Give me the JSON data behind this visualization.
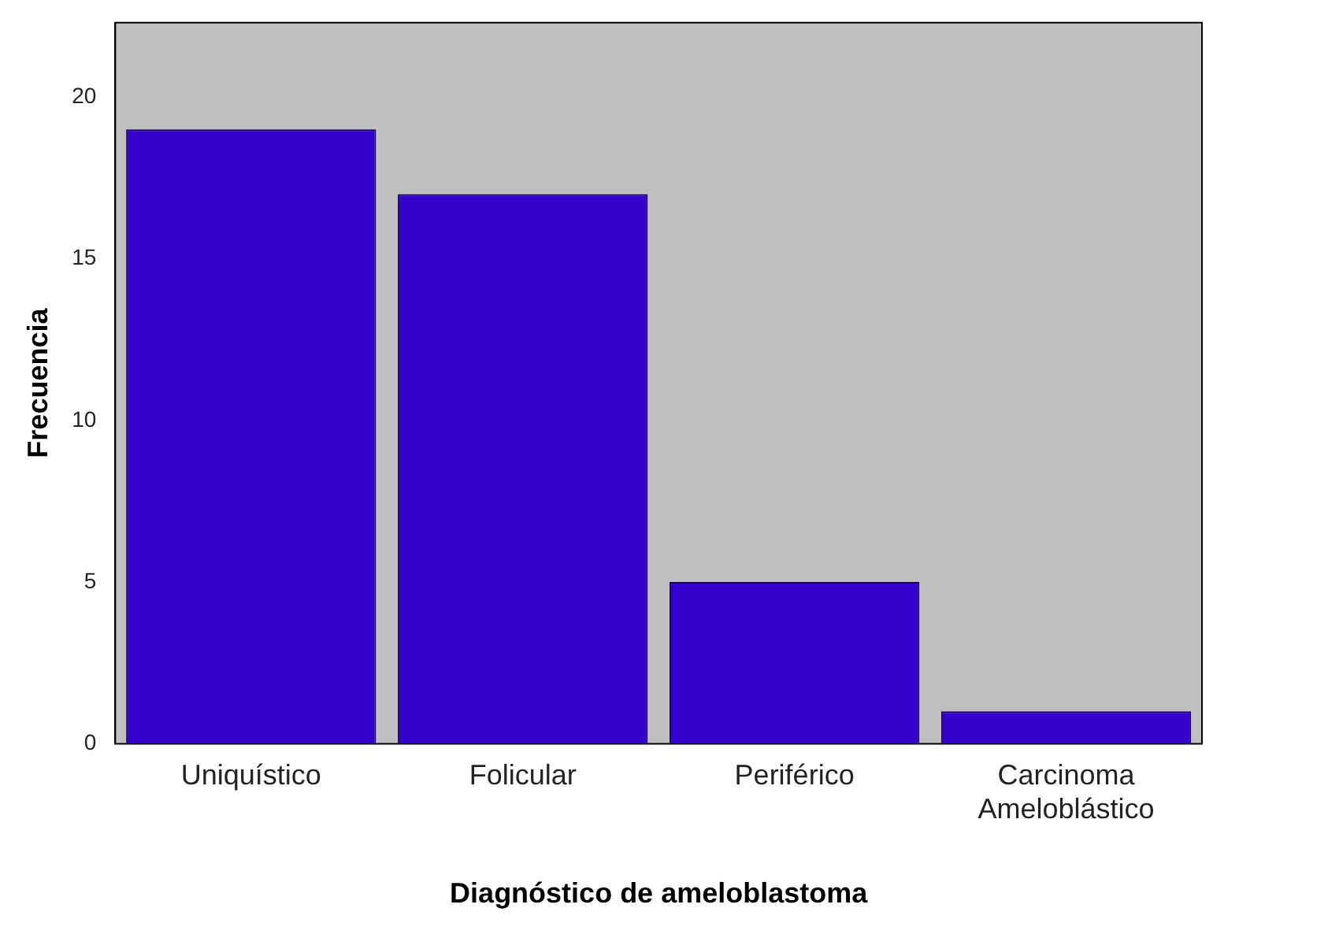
{
  "chart_data": {
    "type": "bar",
    "xlabel": "Diagnóstico de ameloblastoma",
    "ylabel": "Frecuencia",
    "categories": [
      "Uniquístico",
      "Folicular",
      "Periférico",
      "Carcinoma Ameloblástico"
    ],
    "values": [
      19,
      17,
      5,
      1
    ],
    "color": "#3300cc",
    "ylim": [
      0,
      22.3
    ],
    "yticks": [
      0,
      5,
      10,
      15,
      20
    ],
    "grid": false,
    "legend": false
  }
}
